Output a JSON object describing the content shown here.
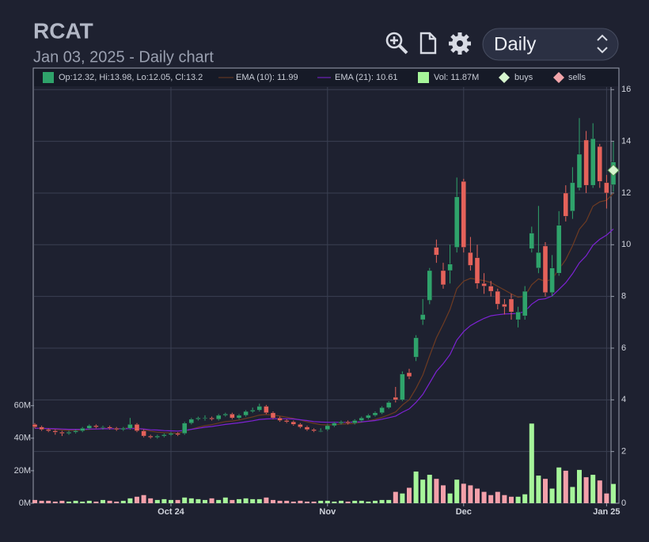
{
  "chart_data": {
    "type": "candlestick",
    "title": "RCAT",
    "subtitle": "Jan 03, 2025 - Daily chart",
    "interval": "Daily",
    "ohlc_label": "Op:12.32, Hi:13.98, Lo:12.05, Cl:13.2",
    "up_color": "#2fa36b",
    "down_color": "#e5625a",
    "grid": true,
    "categories": [
      null,
      null,
      null,
      null,
      null,
      null,
      null,
      null,
      null,
      null,
      null,
      null,
      null,
      null,
      null,
      null,
      null,
      null,
      null,
      null,
      "Oct 24",
      null,
      null,
      null,
      null,
      null,
      null,
      null,
      null,
      null,
      null,
      null,
      null,
      null,
      null,
      null,
      null,
      null,
      null,
      null,
      null,
      null,
      null,
      "Nov",
      null,
      null,
      null,
      null,
      null,
      null,
      null,
      null,
      null,
      null,
      null,
      null,
      null,
      null,
      null,
      null,
      null,
      null,
      null,
      "Dec",
      null,
      null,
      null,
      null,
      null,
      null,
      null,
      null,
      null,
      null,
      null,
      null,
      null,
      null,
      null,
      null,
      null,
      null,
      null,
      null,
      "Jan 25",
      null
    ],
    "open": [
      3.05,
      2.95,
      2.85,
      2.8,
      2.75,
      2.7,
      2.75,
      2.8,
      2.9,
      3.0,
      2.95,
      2.95,
      2.9,
      2.85,
      2.9,
      3.05,
      2.8,
      2.6,
      2.55,
      2.6,
      2.65,
      2.7,
      2.7,
      3.1,
      3.25,
      3.3,
      3.3,
      3.25,
      3.4,
      3.45,
      3.3,
      3.4,
      3.55,
      3.6,
      3.75,
      3.5,
      3.3,
      3.2,
      3.15,
      3.05,
      2.95,
      2.85,
      2.8,
      2.85,
      3.0,
      3.1,
      3.15,
      3.1,
      3.2,
      3.3,
      3.4,
      3.5,
      3.7,
      4.1,
      4.0,
      5.05,
      5.65,
      7.1,
      7.85,
      9.9,
      9.0,
      9.0,
      9.9,
      12.45,
      9.7,
      9.5,
      8.5,
      8.4,
      8.2,
      7.7,
      7.9,
      7.1,
      7.25,
      9.85,
      9.1,
      9.95,
      8.15,
      8.9,
      12.0,
      11.3,
      12.2,
      14.05,
      12.3,
      13.8,
      12.4,
      12.32
    ],
    "high": [
      3.1,
      3.0,
      2.9,
      2.85,
      2.8,
      2.8,
      2.85,
      2.95,
      3.05,
      3.05,
      3.0,
      3.0,
      2.95,
      2.95,
      3.3,
      3.1,
      2.85,
      2.65,
      2.65,
      2.7,
      2.75,
      2.75,
      3.15,
      3.3,
      3.35,
      3.4,
      3.35,
      3.45,
      3.5,
      3.5,
      3.45,
      3.6,
      3.7,
      3.85,
      3.8,
      3.55,
      3.35,
      3.25,
      3.2,
      3.1,
      3.0,
      2.9,
      2.9,
      3.05,
      3.15,
      3.2,
      3.2,
      3.25,
      3.35,
      3.45,
      3.55,
      3.75,
      3.95,
      4.5,
      5.1,
      5.2,
      6.5,
      7.9,
      9.1,
      10.2,
      9.3,
      10.0,
      12.6,
      12.55,
      10.3,
      10.0,
      8.9,
      8.6,
      8.3,
      7.9,
      8.1,
      7.6,
      8.4,
      10.7,
      11.5,
      10.1,
      9.6,
      11.3,
      12.3,
      13.0,
      14.9,
      14.4,
      14.7,
      13.9,
      12.7,
      13.98
    ],
    "low": [
      2.9,
      2.8,
      2.75,
      2.65,
      2.6,
      2.65,
      2.7,
      2.75,
      2.85,
      2.9,
      2.85,
      2.85,
      2.8,
      2.8,
      2.85,
      2.75,
      2.55,
      2.5,
      2.5,
      2.55,
      2.6,
      2.6,
      2.65,
      3.05,
      3.2,
      3.2,
      3.2,
      3.2,
      3.35,
      3.25,
      3.25,
      3.35,
      3.5,
      3.55,
      3.45,
      3.25,
      3.15,
      3.1,
      3.0,
      2.9,
      2.8,
      2.75,
      2.75,
      2.8,
      2.95,
      3.05,
      3.05,
      3.05,
      3.15,
      3.25,
      3.35,
      3.45,
      3.65,
      3.9,
      3.95,
      4.8,
      5.5,
      6.9,
      7.7,
      9.3,
      8.3,
      8.5,
      9.7,
      9.7,
      9.0,
      8.3,
      8.1,
      8.0,
      7.5,
      7.3,
      7.1,
      6.8,
      7.1,
      9.7,
      8.9,
      8.0,
      8.0,
      8.8,
      10.9,
      11.0,
      12.1,
      12.0,
      12.2,
      12.2,
      11.4,
      12.05
    ],
    "close": [
      2.95,
      2.85,
      2.8,
      2.75,
      2.7,
      2.75,
      2.8,
      2.9,
      3.0,
      2.95,
      2.95,
      2.9,
      2.85,
      2.9,
      3.05,
      2.8,
      2.6,
      2.55,
      2.6,
      2.65,
      2.7,
      2.65,
      3.1,
      3.25,
      3.3,
      3.3,
      3.25,
      3.4,
      3.45,
      3.3,
      3.4,
      3.55,
      3.6,
      3.75,
      3.5,
      3.3,
      3.2,
      3.15,
      3.05,
      2.95,
      2.85,
      2.8,
      2.8,
      3.0,
      3.1,
      3.15,
      3.1,
      3.2,
      3.3,
      3.4,
      3.5,
      3.7,
      3.9,
      4.0,
      5.0,
      4.9,
      6.4,
      7.3,
      9.0,
      9.6,
      8.45,
      9.25,
      11.85,
      9.9,
      9.2,
      8.5,
      8.4,
      8.2,
      7.7,
      7.6,
      7.4,
      7.4,
      8.2,
      10.45,
      9.7,
      8.15,
      9.1,
      10.75,
      11.1,
      12.4,
      13.5,
      12.3,
      14.1,
      12.45,
      12.0,
      13.2
    ],
    "ylim": [
      0,
      16.1
    ],
    "yticks": [
      0,
      2,
      4,
      6,
      8,
      10,
      12,
      14,
      16
    ],
    "series": [
      {
        "name": "EMA (10): 11.99",
        "color": "#6e3b22",
        "values": [
          2.9,
          2.9,
          2.88,
          2.86,
          2.83,
          2.82,
          2.82,
          2.83,
          2.86,
          2.87,
          2.89,
          2.9,
          2.89,
          2.89,
          2.92,
          2.9,
          2.85,
          2.79,
          2.75,
          2.73,
          2.72,
          2.71,
          2.78,
          2.86,
          2.94,
          3.0,
          3.04,
          3.1,
          3.16,
          3.18,
          3.22,
          3.28,
          3.34,
          3.41,
          3.43,
          3.41,
          3.37,
          3.33,
          3.28,
          3.22,
          3.15,
          3.09,
          3.04,
          3.03,
          3.04,
          3.06,
          3.07,
          3.09,
          3.13,
          3.18,
          3.24,
          3.32,
          3.42,
          3.53,
          3.8,
          4.0,
          4.44,
          4.96,
          5.7,
          6.4,
          6.93,
          7.5,
          8.3,
          8.59,
          8.7,
          8.66,
          8.61,
          8.54,
          8.39,
          8.25,
          8.1,
          7.97,
          8.01,
          8.45,
          8.68,
          8.58,
          8.67,
          9.05,
          9.42,
          9.96,
          10.6,
          10.91,
          11.49,
          11.66,
          11.72,
          11.99
        ]
      },
      {
        "name": "EMA (21): 10.61",
        "color": "#7d22d4",
        "values": [
          2.9,
          2.9,
          2.89,
          2.88,
          2.87,
          2.86,
          2.86,
          2.86,
          2.87,
          2.87,
          2.88,
          2.88,
          2.88,
          2.88,
          2.89,
          2.89,
          2.87,
          2.84,
          2.83,
          2.81,
          2.8,
          2.79,
          2.82,
          2.86,
          2.9,
          2.94,
          2.97,
          3.01,
          3.05,
          3.08,
          3.11,
          3.15,
          3.19,
          3.24,
          3.26,
          3.27,
          3.27,
          3.27,
          3.26,
          3.23,
          3.2,
          3.16,
          3.14,
          3.13,
          3.13,
          3.13,
          3.13,
          3.14,
          3.15,
          3.17,
          3.2,
          3.25,
          3.31,
          3.37,
          3.52,
          3.65,
          3.9,
          4.21,
          4.65,
          5.1,
          5.4,
          5.75,
          6.31,
          6.64,
          6.87,
          7.02,
          7.15,
          7.25,
          7.29,
          7.32,
          7.33,
          7.34,
          7.42,
          7.7,
          7.88,
          7.91,
          8.02,
          8.27,
          8.53,
          8.88,
          9.3,
          9.57,
          9.98,
          10.21,
          10.37,
          10.61
        ]
      }
    ],
    "volume": {
      "name": "Vol: 11.87M",
      "axis": "y2",
      "color": "#a6f59a",
      "up_color": "#a6f59a",
      "down_color": "#f3a0aa",
      "values": [
        2,
        1.5,
        1.5,
        1,
        1.5,
        1,
        1.5,
        1,
        1.5,
        1,
        2,
        1.5,
        1,
        1.5,
        3,
        4,
        5,
        3,
        2,
        2.5,
        2,
        2,
        3.5,
        3,
        2.5,
        2,
        3,
        2,
        3.5,
        2,
        2.5,
        3,
        2.5,
        2.5,
        3.5,
        2,
        1.5,
        1.5,
        1,
        1.5,
        1,
        1,
        1.5,
        1.5,
        1,
        1.5,
        1,
        1.5,
        1.5,
        1,
        1.5,
        2,
        2,
        7,
        6,
        9.5,
        19.5,
        14.5,
        17.5,
        15,
        11,
        6,
        14.5,
        12,
        11,
        9,
        7,
        5,
        7,
        5,
        4,
        4,
        5.5,
        49,
        17,
        15,
        9,
        22,
        20,
        10,
        20.5,
        16,
        17.5,
        14,
        6,
        11.87
      ]
    },
    "y2lim": [
      0,
      256
    ],
    "y2ticks": [
      {
        "value": 0,
        "label": "0M"
      },
      {
        "value": 20,
        "label": "20M"
      },
      {
        "value": 40,
        "label": "40M"
      },
      {
        "value": 60,
        "label": "60M"
      }
    ],
    "markers": [
      {
        "name": "buys",
        "color": "#d6f5cf",
        "values": [
          null,
          null,
          null,
          null,
          null,
          null,
          null,
          null,
          null,
          null,
          null,
          null,
          null,
          null,
          null,
          null,
          null,
          null,
          null,
          null,
          null,
          null,
          null,
          null,
          null,
          null,
          null,
          null,
          null,
          null,
          null,
          null,
          null,
          null,
          null,
          null,
          null,
          null,
          null,
          null,
          null,
          null,
          null,
          null,
          null,
          null,
          null,
          null,
          null,
          null,
          null,
          null,
          null,
          null,
          null,
          null,
          null,
          null,
          null,
          null,
          null,
          null,
          null,
          null,
          null,
          null,
          null,
          null,
          null,
          null,
          null,
          null,
          null,
          null,
          null,
          null,
          null,
          null,
          null,
          null,
          null,
          null,
          null,
          null,
          null,
          12.88
        ]
      },
      {
        "name": "sells",
        "color": "#f2a5aa",
        "values": [
          null,
          null,
          null,
          null,
          null,
          null,
          null,
          null,
          null,
          null,
          null,
          null,
          null,
          null,
          null,
          null,
          null,
          null,
          null,
          null,
          null,
          null,
          null,
          null,
          null,
          null,
          null,
          null,
          null,
          null,
          null,
          null,
          null,
          null,
          null,
          null,
          null,
          null,
          null,
          null,
          null,
          null,
          null,
          null,
          null,
          null,
          null,
          null,
          null,
          null,
          null,
          null,
          null,
          null,
          null,
          null,
          null,
          null,
          null,
          null,
          null,
          null,
          null,
          null,
          null,
          null,
          null,
          null,
          null,
          null,
          null,
          null,
          null,
          null,
          null,
          null,
          null,
          null,
          null,
          null,
          null,
          null,
          null,
          null,
          null,
          null
        ]
      }
    ]
  }
}
